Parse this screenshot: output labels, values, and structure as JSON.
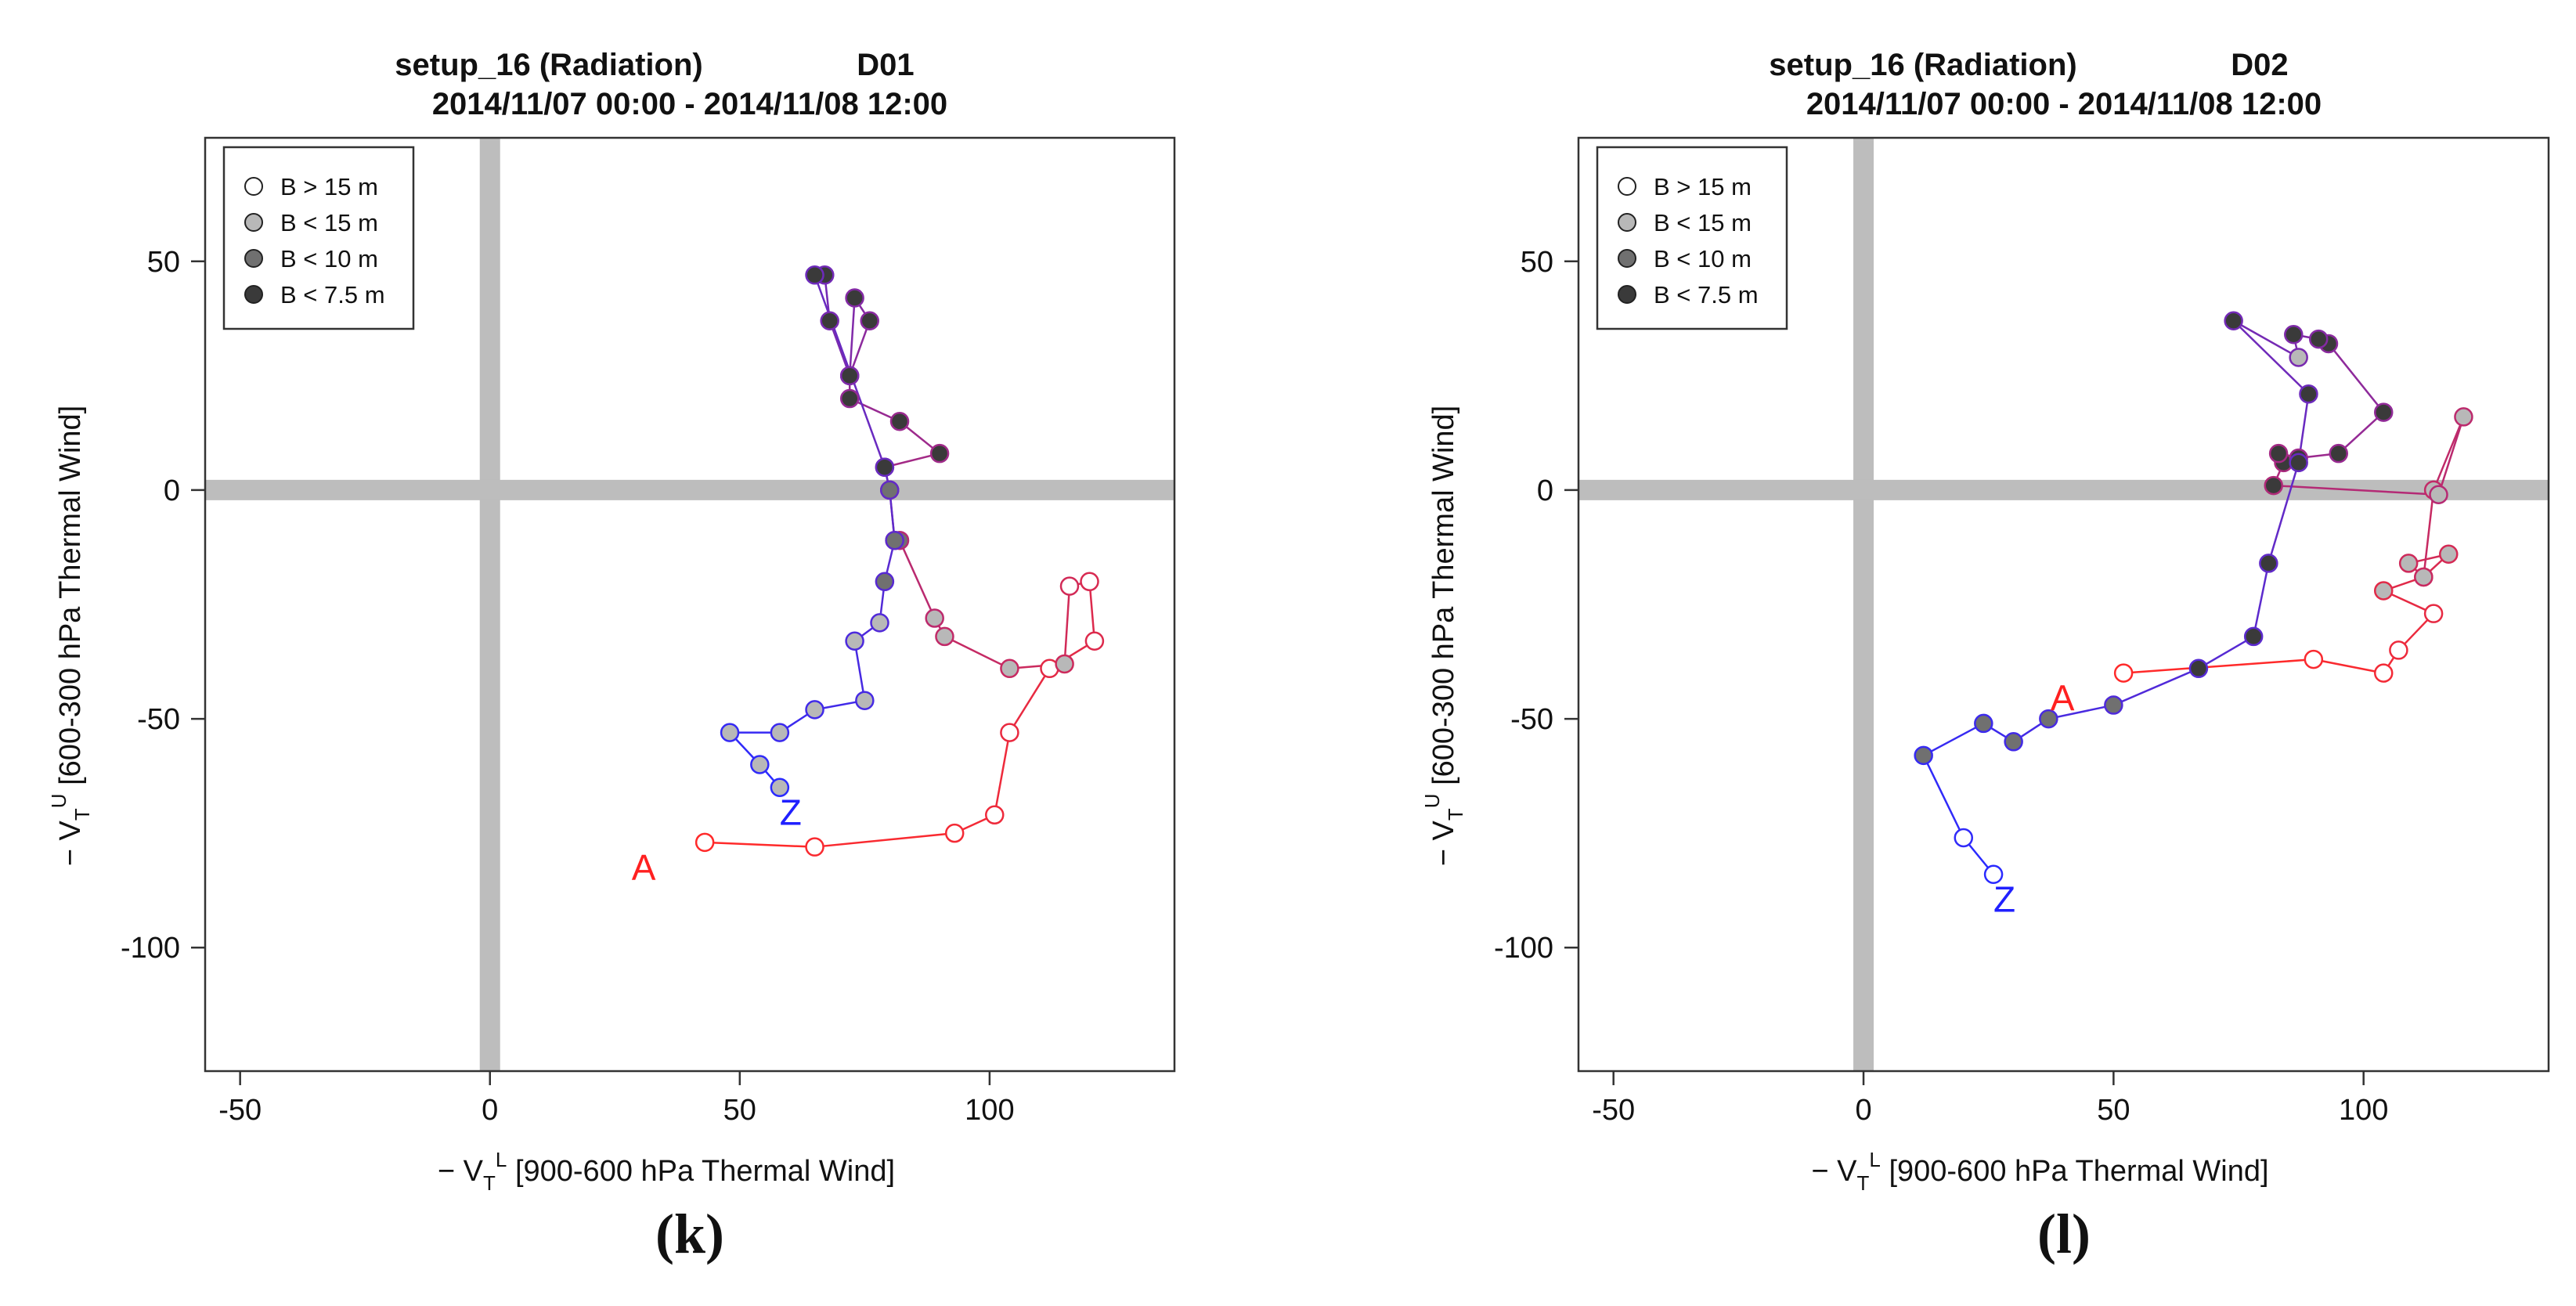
{
  "chart_data": [
    {
      "type": "scatter",
      "panel_label": "(k)",
      "title_line1_left": "setup_16 (Radiation)",
      "title_line1_right": "D01",
      "title_line2": "2014/11/07 00:00 - 2014/11/08 12:00",
      "xlim": [
        -57,
        137
      ],
      "ylim": [
        -127,
        77
      ],
      "xticks": [
        -50,
        0,
        50,
        100
      ],
      "yticks": [
        50,
        0,
        -50,
        -100
      ],
      "xtick_labels": [
        "-50",
        "0",
        "50",
        "100"
      ],
      "ytick_labels": [
        "50",
        "0",
        "-50",
        "-100"
      ],
      "xlabel_prefix": "− V",
      "xlabel_sub": "T",
      "xlabel_sup": "L",
      "xlabel_text": " [900-600 hPa Thermal Wind]",
      "ylabel_prefix": "− V",
      "ylabel_sub": "T",
      "ylabel_sup": "U",
      "ylabel_text": " [600-300 hPa Thermal Wind]",
      "start_label": "A",
      "end_label": "Z",
      "start_color": "#ff2020",
      "end_color": "#2020ff",
      "legend": [
        {
          "label": "B > 15 m",
          "fill": "#ffffff"
        },
        {
          "label": "B < 15 m",
          "fill": "#b8b8b8"
        },
        {
          "label": "B < 10 m",
          "fill": "#707070"
        },
        {
          "label": "B < 7.5 m",
          "fill": "#3a3a3a"
        }
      ],
      "points": [
        {
          "x": 43,
          "y": -77,
          "cls": 0
        },
        {
          "x": 65,
          "y": -78,
          "cls": 0
        },
        {
          "x": 93,
          "y": -75,
          "cls": 0
        },
        {
          "x": 101,
          "y": -71,
          "cls": 0
        },
        {
          "x": 104,
          "y": -53,
          "cls": 0
        },
        {
          "x": 112,
          "y": -39,
          "cls": 0
        },
        {
          "x": 121,
          "y": -33,
          "cls": 0
        },
        {
          "x": 120,
          "y": -20,
          "cls": 0
        },
        {
          "x": 116,
          "y": -21,
          "cls": 0
        },
        {
          "x": 115,
          "y": -38,
          "cls": 1
        },
        {
          "x": 104,
          "y": -39,
          "cls": 1
        },
        {
          "x": 91,
          "y": -32,
          "cls": 1
        },
        {
          "x": 89,
          "y": -28,
          "cls": 1
        },
        {
          "x": 82,
          "y": -11,
          "cls": 2
        },
        {
          "x": 81,
          "y": -11,
          "cls": 2
        },
        {
          "x": 80,
          "y": 0,
          "cls": 2
        },
        {
          "x": 79,
          "y": 5,
          "cls": 3
        },
        {
          "x": 90,
          "y": 8,
          "cls": 3
        },
        {
          "x": 82,
          "y": 15,
          "cls": 3
        },
        {
          "x": 72,
          "y": 20,
          "cls": 3
        },
        {
          "x": 72,
          "y": 25,
          "cls": 3
        },
        {
          "x": 76,
          "y": 37,
          "cls": 3
        },
        {
          "x": 73,
          "y": 42,
          "cls": 3
        },
        {
          "x": 72,
          "y": 25,
          "cls": 3
        },
        {
          "x": 68,
          "y": 37,
          "cls": 3
        },
        {
          "x": 67,
          "y": 47,
          "cls": 3
        },
        {
          "x": 65,
          "y": 47,
          "cls": 3
        },
        {
          "x": 79,
          "y": 5,
          "cls": 3
        },
        {
          "x": 80,
          "y": 0,
          "cls": 2
        },
        {
          "x": 81,
          "y": -11,
          "cls": 2
        },
        {
          "x": 79,
          "y": -20,
          "cls": 2
        },
        {
          "x": 78,
          "y": -29,
          "cls": 1
        },
        {
          "x": 73,
          "y": -33,
          "cls": 1
        },
        {
          "x": 75,
          "y": -46,
          "cls": 1
        },
        {
          "x": 65,
          "y": -48,
          "cls": 1
        },
        {
          "x": 58,
          "y": -53,
          "cls": 1
        },
        {
          "x": 48,
          "y": -53,
          "cls": 1
        },
        {
          "x": 54,
          "y": -60,
          "cls": 1
        },
        {
          "x": 58,
          "y": -65,
          "cls": 1
        }
      ]
    },
    {
      "type": "scatter",
      "panel_label": "(l)",
      "title_line1_left": "setup_16 (Radiation)",
      "title_line1_right": "D02",
      "title_line2": "2014/11/07 00:00 - 2014/11/08 12:00",
      "xlim": [
        -57,
        137
      ],
      "ylim": [
        -127,
        77
      ],
      "xticks": [
        -50,
        0,
        50,
        100
      ],
      "yticks": [
        50,
        0,
        -50,
        -100
      ],
      "xtick_labels": [
        "-50",
        "0",
        "50",
        "100"
      ],
      "ytick_labels": [
        "50",
        "0",
        "-50",
        "-100"
      ],
      "xlabel_prefix": "− V",
      "xlabel_sub": "T",
      "xlabel_sup": "L",
      "xlabel_text": " [900-600 hPa Thermal Wind]",
      "ylabel_prefix": "− V",
      "ylabel_sub": "T",
      "ylabel_sup": "U",
      "ylabel_text": " [600-300 hPa Thermal Wind]",
      "start_label": "A",
      "end_label": "Z",
      "start_color": "#ff2020",
      "end_color": "#2020ff",
      "legend": [
        {
          "label": "B > 15 m",
          "fill": "#ffffff"
        },
        {
          "label": "B < 15 m",
          "fill": "#b8b8b8"
        },
        {
          "label": "B < 10 m",
          "fill": "#707070"
        },
        {
          "label": "B < 7.5 m",
          "fill": "#3a3a3a"
        }
      ],
      "points": [
        {
          "x": 52,
          "y": -40,
          "cls": 0
        },
        {
          "x": 90,
          "y": -37,
          "cls": 0
        },
        {
          "x": 104,
          "y": -40,
          "cls": 0
        },
        {
          "x": 107,
          "y": -35,
          "cls": 0
        },
        {
          "x": 114,
          "y": -27,
          "cls": 0
        },
        {
          "x": 104,
          "y": -22,
          "cls": 1
        },
        {
          "x": 112,
          "y": -19,
          "cls": 1
        },
        {
          "x": 117,
          "y": -14,
          "cls": 1
        },
        {
          "x": 109,
          "y": -16,
          "cls": 1
        },
        {
          "x": 112,
          "y": -19,
          "cls": 1
        },
        {
          "x": 114,
          "y": 0,
          "cls": 1
        },
        {
          "x": 120,
          "y": 16,
          "cls": 1
        },
        {
          "x": 115,
          "y": -1,
          "cls": 1
        },
        {
          "x": 82,
          "y": 1,
          "cls": 3
        },
        {
          "x": 84,
          "y": 6,
          "cls": 3
        },
        {
          "x": 83,
          "y": 8,
          "cls": 3
        },
        {
          "x": 87,
          "y": 7,
          "cls": 3
        },
        {
          "x": 95,
          "y": 8,
          "cls": 3
        },
        {
          "x": 104,
          "y": 17,
          "cls": 3
        },
        {
          "x": 93,
          "y": 32,
          "cls": 3
        },
        {
          "x": 91,
          "y": 33,
          "cls": 3
        },
        {
          "x": 86,
          "y": 34,
          "cls": 3
        },
        {
          "x": 87,
          "y": 29,
          "cls": 1
        },
        {
          "x": 74,
          "y": 37,
          "cls": 3
        },
        {
          "x": 89,
          "y": 21,
          "cls": 3
        },
        {
          "x": 87,
          "y": 6,
          "cls": 3
        },
        {
          "x": 81,
          "y": -16,
          "cls": 3
        },
        {
          "x": 78,
          "y": -32,
          "cls": 3
        },
        {
          "x": 67,
          "y": -39,
          "cls": 3
        },
        {
          "x": 50,
          "y": -47,
          "cls": 2
        },
        {
          "x": 37,
          "y": -50,
          "cls": 2
        },
        {
          "x": 30,
          "y": -55,
          "cls": 2
        },
        {
          "x": 24,
          "y": -51,
          "cls": 2
        },
        {
          "x": 12,
          "y": -58,
          "cls": 2
        },
        {
          "x": 20,
          "y": -76,
          "cls": 0
        },
        {
          "x": 26,
          "y": -84,
          "cls": 0
        }
      ]
    }
  ]
}
